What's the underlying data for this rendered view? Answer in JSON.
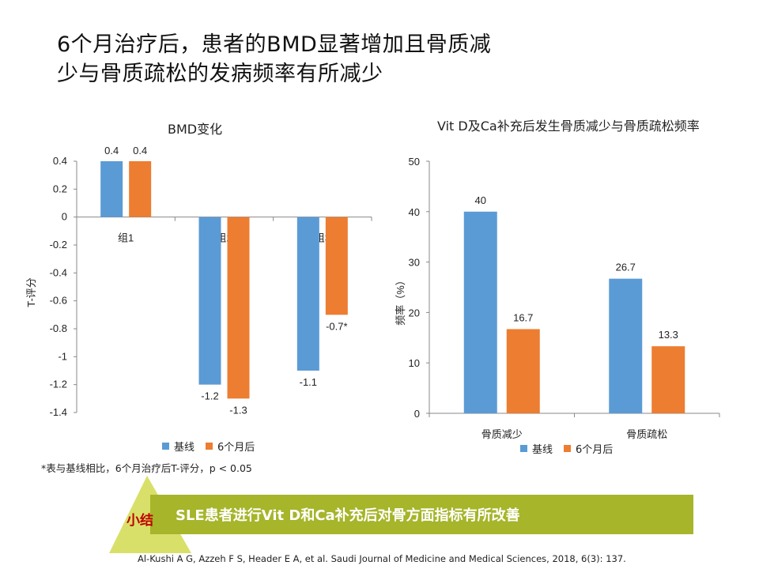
{
  "slide": {
    "title_line1": "6个月治疗后，患者的BMD显著增加且骨质减",
    "title_line2": "少与骨质疏松的发病频率有所减少",
    "footnote": "*表与基线相比，6个月治疗后T-评分，p < 0.05",
    "summary_tag": "小结",
    "summary_text": "SLE患者进行Vit D和Ca补充后对骨方面指标有所改善",
    "citation": "Al-Kushi A G, Azzeh F S, Header E A, et al. Saudi Journal  of Medicine and Medical Sciences, 2018, 6(3): 137.",
    "colors": {
      "baseline": "#5b9bd5",
      "month6": "#ed7d31",
      "banner": "#a6b52a",
      "tag": "#c00000"
    }
  },
  "chart_data": [
    {
      "type": "bar",
      "title": "BMD变化",
      "ylabel": "T-评分",
      "xlabel": "",
      "categories": [
        "组1",
        "组2",
        "组3"
      ],
      "series": [
        {
          "name": "基线",
          "values": [
            0.4,
            -1.2,
            -1.1
          ],
          "labels": [
            "0.4",
            "-1.2",
            "-1.1"
          ]
        },
        {
          "name": "6个月后",
          "values": [
            0.4,
            -1.3,
            -0.7
          ],
          "labels": [
            "0.4",
            "-1.3",
            "-0.7*"
          ]
        }
      ],
      "ylim": [
        -1.4,
        0.4
      ],
      "yticks": [
        "0.4",
        "0.2",
        "0",
        "-0.2",
        "-0.4",
        "-0.6",
        "-0.8",
        "-1",
        "-1.2",
        "-1.4"
      ],
      "grid": false,
      "legend": "bottom"
    },
    {
      "type": "bar",
      "title": "Vit D及Ca补充后发生骨质减少与骨质疏松频率",
      "ylabel": "频率（%）",
      "xlabel": "",
      "categories": [
        "骨质减少",
        "骨质疏松"
      ],
      "series": [
        {
          "name": "基线",
          "values": [
            40,
            26.7
          ],
          "labels": [
            "40",
            "26.7"
          ]
        },
        {
          "name": "6个月后",
          "values": [
            16.7,
            13.3
          ],
          "labels": [
            "16.7",
            "13.3"
          ]
        }
      ],
      "ylim": [
        0,
        50
      ],
      "yticks": [
        "50",
        "40",
        "30",
        "20",
        "10",
        "0"
      ],
      "grid": false,
      "legend": "bottom"
    }
  ]
}
